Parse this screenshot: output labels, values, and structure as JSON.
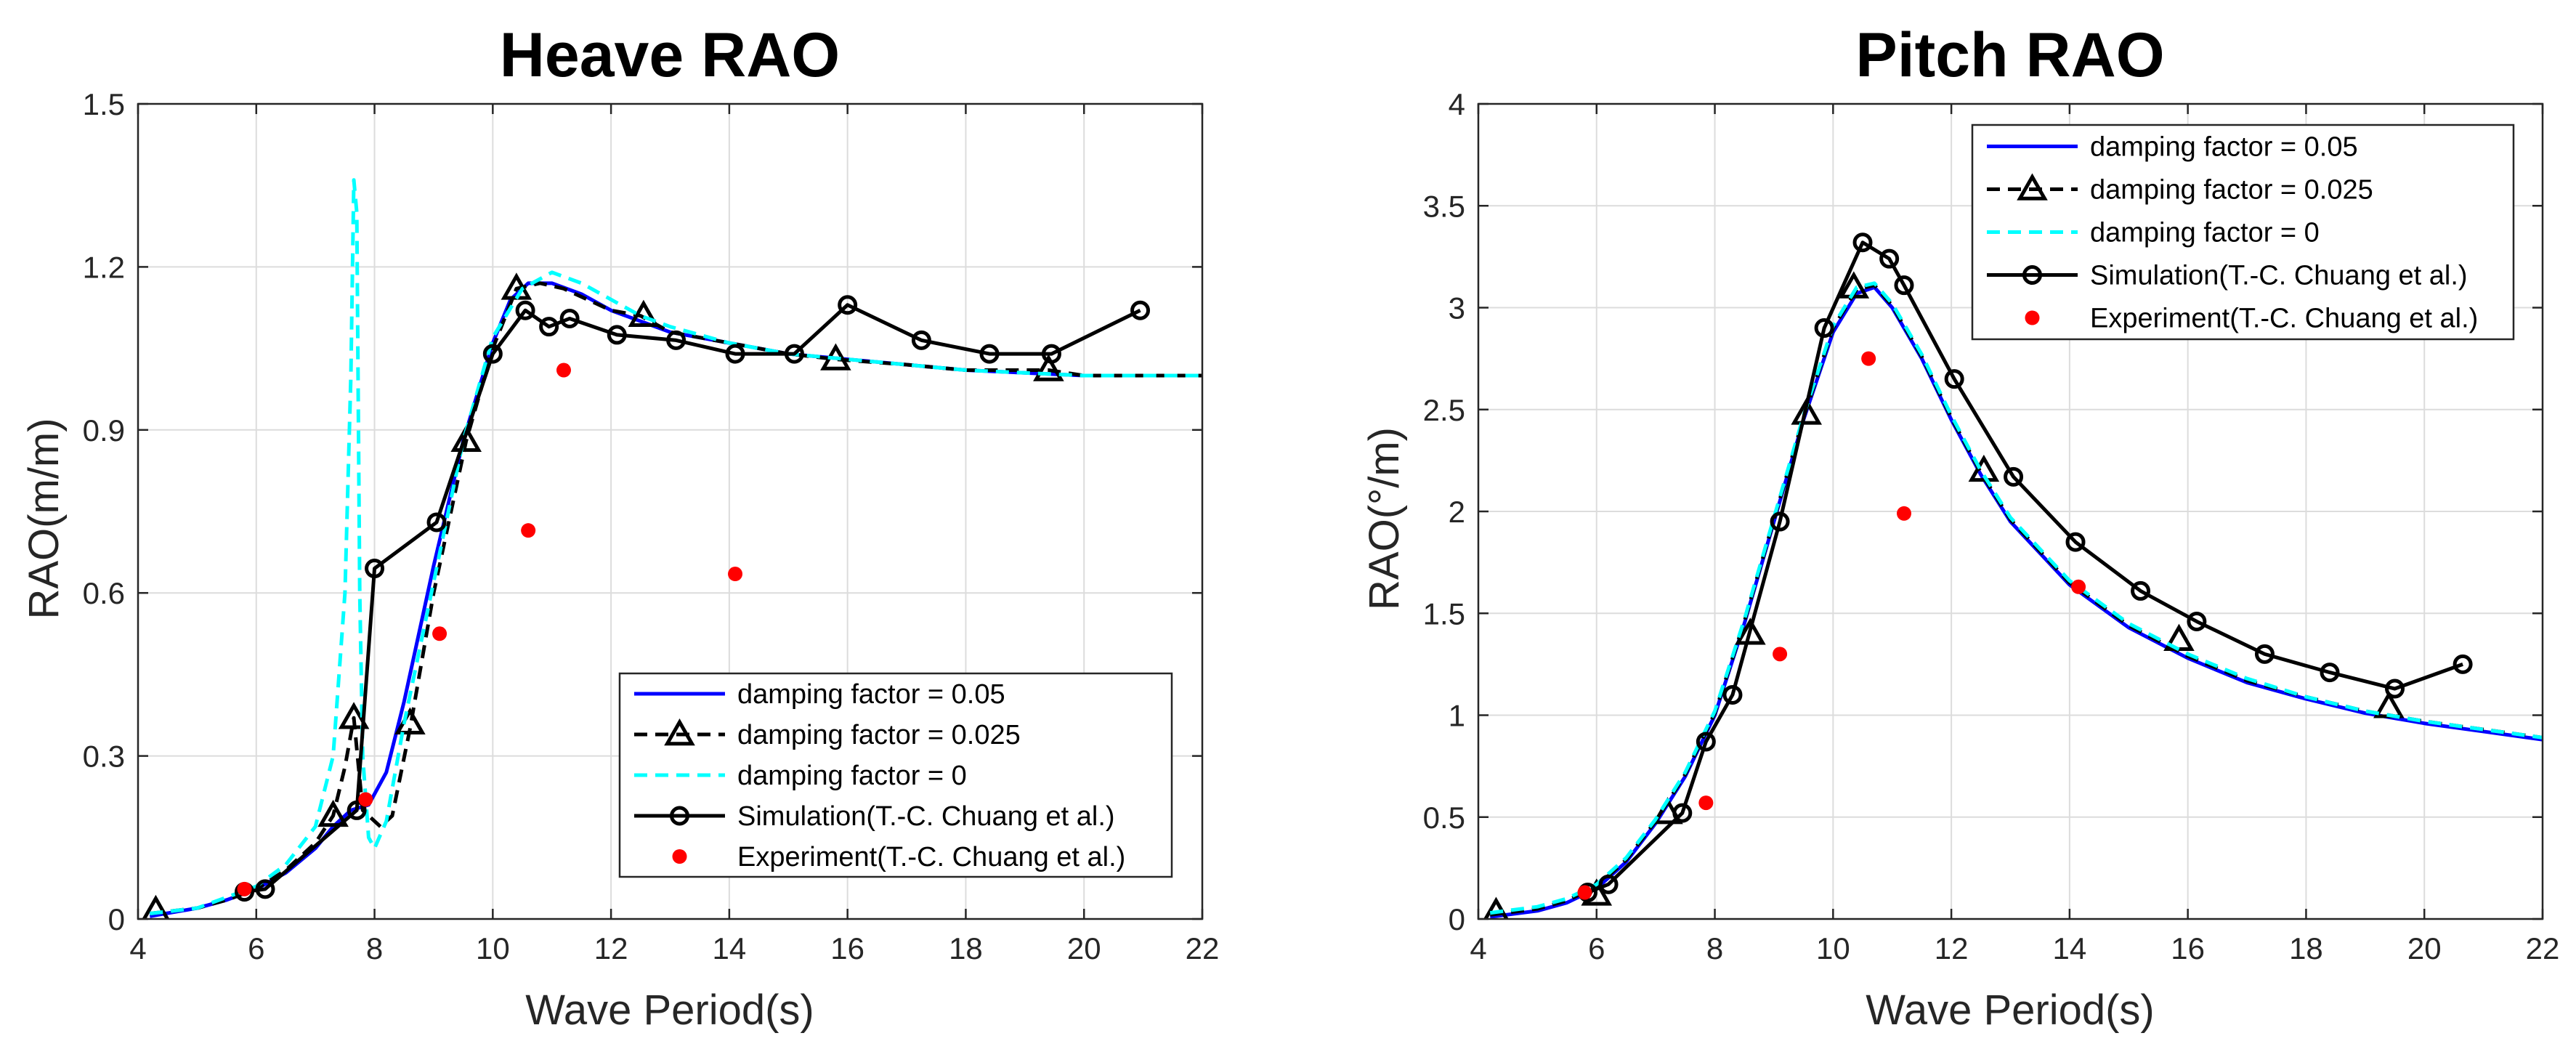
{
  "colors": {
    "damping_005": "#0000ff",
    "damping_0025": "#000000",
    "damping_0": "#00ffff",
    "simulation": "#000000",
    "experiment": "#ff0000",
    "grid": "#dcdcdc"
  },
  "chart_data": [
    {
      "type": "line",
      "title": "Heave RAO",
      "xlabel": "Wave Period(s)",
      "ylabel": "RAO(m/m)",
      "xlim": [
        4,
        22
      ],
      "ylim": [
        0,
        1.5
      ],
      "xticks": [
        4,
        6,
        8,
        10,
        12,
        14,
        16,
        18,
        20,
        22
      ],
      "xtick_labels": [
        "4",
        "6",
        "8",
        "10",
        "12",
        "14",
        "16",
        "18",
        "20",
        "22"
      ],
      "yticks": [
        0,
        0.3,
        0.6,
        0.9,
        1.2,
        1.5
      ],
      "ytick_labels": [
        "0",
        "0.3",
        "0.6",
        "0.9",
        "1.2",
        "1.5"
      ],
      "grid": true,
      "legend_position": "bottom-right",
      "series": [
        {
          "name": "damping factor = 0.05",
          "style": "solid",
          "marker": "none",
          "color_key": "damping_005",
          "x": [
            4.2,
            5.0,
            5.5,
            6.0,
            6.5,
            7.0,
            7.3,
            7.6,
            7.9,
            8.2,
            8.5,
            9.0,
            9.5,
            10.0,
            10.3,
            10.6,
            11.0,
            11.5,
            12.0,
            12.5,
            13.0,
            14.0,
            15.0,
            16.0,
            17.0,
            18.0,
            19.0,
            20.0,
            21.0,
            22.0
          ],
          "y": [
            0.005,
            0.02,
            0.035,
            0.055,
            0.085,
            0.13,
            0.17,
            0.2,
            0.21,
            0.27,
            0.4,
            0.65,
            0.88,
            1.06,
            1.14,
            1.17,
            1.17,
            1.15,
            1.12,
            1.1,
            1.08,
            1.06,
            1.04,
            1.03,
            1.02,
            1.01,
            1.005,
            1.0,
            1.0,
            1.0
          ]
        },
        {
          "name": "damping factor = 0.025",
          "style": "dashed",
          "marker": "triangle",
          "color_key": "damping_0025",
          "x": [
            4.2,
            5.0,
            5.5,
            6.0,
            6.5,
            7.0,
            7.3,
            7.5,
            7.65,
            7.8,
            7.9,
            8.1,
            8.3,
            8.6,
            9.0,
            9.55,
            10.0,
            10.4,
            10.8,
            11.2,
            11.6,
            12.0,
            12.5,
            13.0,
            14.0,
            15.0,
            15.8,
            17.0,
            18.0,
            19.4,
            20.0,
            22.0
          ],
          "y": [
            0.01,
            0.02,
            0.035,
            0.055,
            0.09,
            0.14,
            0.19,
            0.28,
            0.37,
            0.2,
            0.19,
            0.17,
            0.19,
            0.35,
            0.6,
            0.88,
            1.05,
            1.16,
            1.17,
            1.16,
            1.14,
            1.12,
            1.11,
            1.08,
            1.06,
            1.04,
            1.03,
            1.02,
            1.01,
            1.01,
            1.0,
            1.0
          ],
          "marker_x": [
            4.3,
            7.3,
            7.65,
            8.6,
            9.55,
            10.4,
            12.55,
            15.8,
            19.4
          ],
          "marker_y": [
            0.015,
            0.19,
            0.37,
            0.36,
            0.88,
            1.16,
            1.11,
            1.03,
            1.01
          ]
        },
        {
          "name": "damping factor = 0",
          "style": "dashed",
          "marker": "none",
          "color_key": "damping_0",
          "x": [
            4.2,
            5.0,
            5.5,
            6.0,
            6.5,
            7.0,
            7.3,
            7.5,
            7.6,
            7.65,
            7.7,
            7.75,
            7.8,
            7.9,
            8.0,
            8.2,
            8.5,
            9.0,
            9.5,
            10.0,
            10.5,
            11.0,
            11.5,
            12.0,
            12.5,
            13.0,
            14.0,
            15.0,
            16.0,
            17.0,
            18.0,
            19.0,
            20.0,
            21.0,
            22.0
          ],
          "y": [
            0.01,
            0.02,
            0.04,
            0.06,
            0.1,
            0.17,
            0.3,
            0.6,
            1.0,
            1.36,
            1.3,
            0.6,
            0.3,
            0.15,
            0.13,
            0.18,
            0.36,
            0.62,
            0.88,
            1.07,
            1.16,
            1.19,
            1.17,
            1.14,
            1.11,
            1.09,
            1.06,
            1.04,
            1.03,
            1.02,
            1.01,
            1.005,
            1.0,
            1.0,
            1.0
          ]
        },
        {
          "name": "Simulation(T.-C. Chuang et al.)",
          "style": "solid",
          "marker": "circle",
          "color_key": "simulation",
          "x": [
            5.8,
            6.15,
            7.7,
            8.0,
            9.05,
            10.0,
            10.55,
            10.95,
            11.3,
            12.1,
            13.1,
            14.1,
            15.1,
            16.0,
            17.25,
            18.4,
            19.45,
            20.95
          ],
          "y": [
            0.05,
            0.055,
            0.2,
            0.645,
            0.73,
            1.04,
            1.12,
            1.09,
            1.105,
            1.075,
            1.065,
            1.04,
            1.04,
            1.13,
            1.065,
            1.04,
            1.04,
            1.12
          ]
        },
        {
          "name": "Experiment(T.-C. Chuang et al.)",
          "style": "none",
          "marker": "dot",
          "color_key": "experiment",
          "x": [
            5.8,
            7.85,
            9.1,
            10.6,
            11.2,
            14.1
          ],
          "y": [
            0.055,
            0.22,
            0.525,
            0.715,
            1.01,
            0.635
          ]
        }
      ]
    },
    {
      "type": "line",
      "title": "Pitch RAO",
      "xlabel": "Wave Period(s)",
      "ylabel": "RAO(°/m)",
      "xlim": [
        4,
        22
      ],
      "ylim": [
        0,
        4
      ],
      "xticks": [
        4,
        6,
        8,
        10,
        12,
        14,
        16,
        18,
        20,
        22
      ],
      "xtick_labels": [
        "4",
        "6",
        "8",
        "10",
        "12",
        "14",
        "16",
        "18",
        "20",
        "22"
      ],
      "yticks": [
        0,
        0.5,
        1,
        1.5,
        2,
        2.5,
        3,
        3.5,
        4
      ],
      "ytick_labels": [
        "0",
        "0.5",
        "1",
        "1.5",
        "2",
        "2.5",
        "3",
        "3.5",
        "4"
      ],
      "grid": true,
      "legend_position": "top-right",
      "series": [
        {
          "name": "damping factor = 0.05",
          "style": "solid",
          "marker": "none",
          "color_key": "damping_005",
          "x": [
            4.2,
            5.0,
            5.5,
            6.0,
            6.5,
            7.0,
            7.5,
            8.0,
            8.5,
            9.0,
            9.5,
            10.0,
            10.4,
            10.7,
            11.0,
            11.5,
            12.0,
            12.5,
            13.0,
            14.0,
            15.0,
            16.0,
            17.0,
            18.0,
            19.0,
            20.0,
            21.0,
            22.0
          ],
          "y": [
            0.01,
            0.04,
            0.08,
            0.15,
            0.28,
            0.47,
            0.7,
            1.0,
            1.45,
            1.95,
            2.45,
            2.88,
            3.07,
            3.1,
            3.0,
            2.75,
            2.45,
            2.18,
            1.95,
            1.64,
            1.43,
            1.28,
            1.16,
            1.08,
            1.01,
            0.96,
            0.92,
            0.88
          ]
        },
        {
          "name": "damping factor = 0.025",
          "style": "dashed",
          "marker": "triangle",
          "color_key": "damping_0025",
          "x": [
            4.2,
            5.0,
            5.5,
            6.0,
            6.5,
            7.0,
            7.5,
            8.0,
            8.5,
            9.0,
            9.5,
            10.0,
            10.4,
            10.7,
            11.0,
            11.5,
            12.0,
            12.5,
            13.0,
            14.0,
            15.0,
            16.0,
            17.0,
            18.0,
            19.0,
            20.0,
            21.0,
            22.0
          ],
          "y": [
            0.02,
            0.05,
            0.09,
            0.16,
            0.29,
            0.48,
            0.71,
            1.01,
            1.46,
            1.96,
            2.46,
            2.9,
            3.09,
            3.11,
            3.01,
            2.76,
            2.46,
            2.19,
            1.96,
            1.65,
            1.44,
            1.29,
            1.17,
            1.09,
            1.02,
            0.97,
            0.93,
            0.89
          ],
          "marker_x": [
            4.3,
            6.0,
            7.2,
            8.6,
            9.55,
            10.35,
            12.55,
            15.85,
            19.4
          ],
          "marker_y": [
            0.03,
            0.12,
            0.52,
            1.4,
            2.48,
            3.1,
            2.2,
            1.37,
            1.04
          ]
        },
        {
          "name": "damping factor = 0",
          "style": "dashed",
          "marker": "none",
          "color_key": "damping_0",
          "x": [
            4.2,
            5.0,
            5.5,
            6.0,
            6.5,
            7.0,
            7.5,
            8.0,
            8.5,
            9.0,
            9.5,
            10.0,
            10.4,
            10.7,
            11.0,
            11.5,
            12.0,
            12.5,
            13.0,
            14.0,
            15.0,
            16.0,
            17.0,
            18.0,
            19.0,
            20.0,
            21.0,
            22.0
          ],
          "y": [
            0.03,
            0.06,
            0.1,
            0.17,
            0.3,
            0.49,
            0.72,
            1.02,
            1.47,
            1.97,
            2.47,
            2.91,
            3.1,
            3.12,
            3.02,
            2.77,
            2.47,
            2.2,
            1.97,
            1.66,
            1.45,
            1.3,
            1.18,
            1.09,
            1.02,
            0.97,
            0.93,
            0.89
          ]
        },
        {
          "name": "Simulation(T.-C. Chuang et al.)",
          "style": "solid",
          "marker": "circle",
          "color_key": "simulation",
          "x": [
            5.85,
            6.2,
            7.45,
            7.85,
            8.3,
            9.1,
            9.85,
            10.5,
            10.95,
            11.2,
            12.05,
            13.05,
            14.1,
            15.2,
            16.15,
            17.3,
            18.4,
            19.5,
            20.65
          ],
          "y": [
            0.13,
            0.17,
            0.52,
            0.87,
            1.1,
            1.95,
            2.9,
            3.32,
            3.24,
            3.11,
            2.65,
            2.17,
            1.85,
            1.61,
            1.46,
            1.3,
            1.21,
            1.13,
            1.25
          ]
        },
        {
          "name": "Experiment(T.-C. Chuang et al.)",
          "style": "none",
          "marker": "dot",
          "color_key": "experiment",
          "x": [
            5.8,
            7.85,
            9.1,
            10.6,
            11.2,
            14.15
          ],
          "y": [
            0.13,
            0.57,
            1.3,
            2.75,
            1.99,
            1.63
          ]
        }
      ]
    }
  ]
}
